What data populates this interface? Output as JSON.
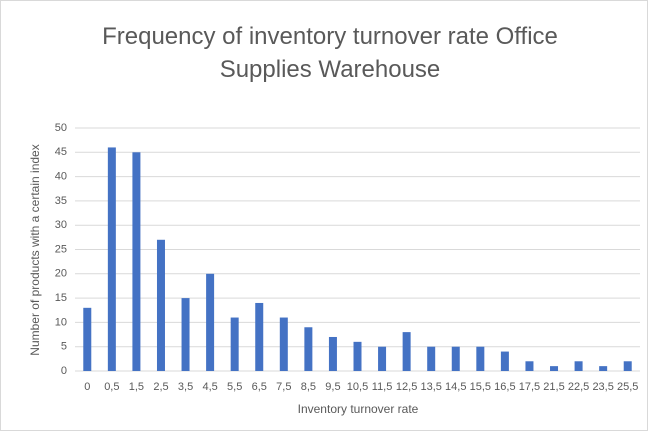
{
  "chart_data": {
    "type": "bar",
    "title": "Frequency of inventory turnover rate Office Supplies Warehouse",
    "x_label": "Inventory turnover rate",
    "y_label": "Number of products with a certain index",
    "categories": [
      "0",
      "0,5",
      "1,5",
      "2,5",
      "3,5",
      "4,5",
      "5,5",
      "6,5",
      "7,5",
      "8,5",
      "9,5",
      "10,5",
      "11,5",
      "12,5",
      "13,5",
      "14,5",
      "15,5",
      "16,5",
      "17,5",
      "21,5",
      "22,5",
      "23,5",
      "25,5"
    ],
    "values": [
      13,
      46,
      45,
      27,
      15,
      20,
      11,
      14,
      11,
      9,
      7,
      6,
      5,
      8,
      5,
      5,
      5,
      4,
      2,
      1,
      2,
      1,
      2
    ],
    "color": "#4472c4",
    "ylim": [
      0,
      50
    ],
    "yticks": [
      0,
      5,
      10,
      15,
      20,
      25,
      30,
      35,
      40,
      45,
      50
    ],
    "grid": true
  }
}
